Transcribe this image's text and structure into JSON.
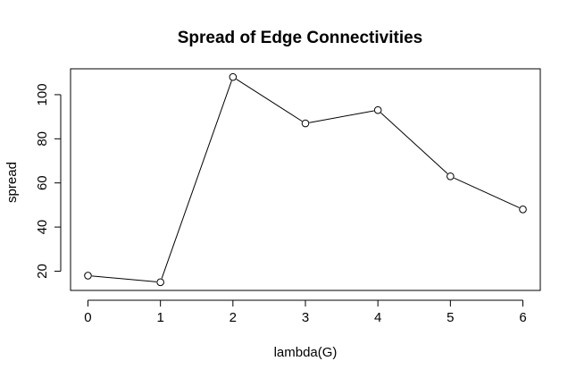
{
  "chart_data": {
    "type": "line",
    "title": "Spread of Edge Connectivities",
    "xlabel": "lambda(G)",
    "ylabel": "spread",
    "x": [
      0,
      1,
      2,
      3,
      4,
      5,
      6
    ],
    "series": [
      {
        "values": [
          18,
          15,
          108,
          87,
          93,
          63,
          48
        ]
      }
    ],
    "x_ticks": [
      "0",
      "1",
      "2",
      "3",
      "4",
      "5",
      "6"
    ],
    "y_ticks": [
      "20",
      "40",
      "60",
      "80",
      "100"
    ],
    "xlim": [
      -0.24,
      6.24
    ],
    "ylim": [
      11.28,
      111.72
    ],
    "grid": false,
    "line_color": "#000000",
    "marker": "open-circle"
  }
}
